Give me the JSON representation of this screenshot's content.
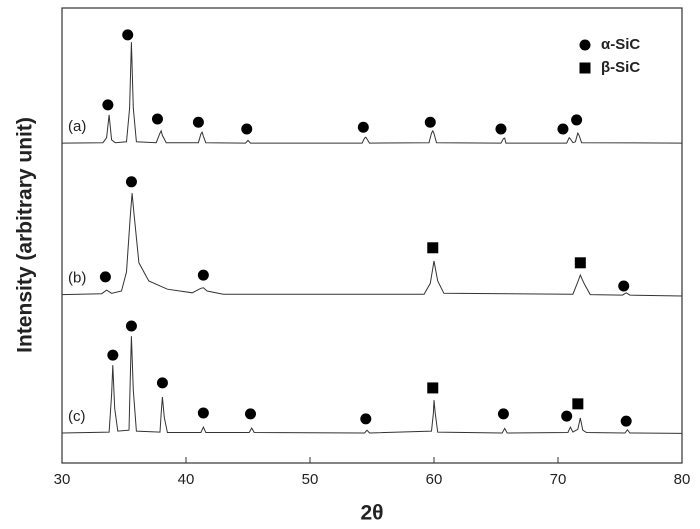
{
  "chart_data": {
    "type": "line",
    "xlabel": "2θ",
    "ylabel": "Intensity (arbitrary unit)",
    "xlim": [
      30,
      80
    ],
    "xticks": [
      30,
      40,
      50,
      60,
      70,
      80
    ],
    "ylim": [
      0,
      100
    ],
    "legend": "top-right",
    "series": [
      {
        "name": "(a)",
        "color": "#333333",
        "x": [
          30,
          33.3,
          33.6,
          33.8,
          34.0,
          34.3,
          35.2,
          35.45,
          35.6,
          35.75,
          36.0,
          37.6,
          37.9,
          38.0,
          38.1,
          38.4,
          41.0,
          41.2,
          41.3,
          41.4,
          41.6,
          44.8,
          45.0,
          45.2,
          54.2,
          54.4,
          54.5,
          54.6,
          54.8,
          59.6,
          59.8,
          59.9,
          60.0,
          60.2,
          65.4,
          65.6,
          65.7,
          65.8,
          70.7,
          70.9,
          71.0,
          71.2,
          71.4,
          71.6,
          71.7,
          71.9,
          80
        ],
        "values": [
          70.3,
          70.4,
          71.5,
          76.5,
          71,
          70.4,
          70.6,
          78,
          92.5,
          78,
          70.6,
          70.4,
          72.5,
          73,
          72,
          70.4,
          70.4,
          72.3,
          72.7,
          71.8,
          70.4,
          70.3,
          70.9,
          70.3,
          70.3,
          71.4,
          71.6,
          71.2,
          70.3,
          70.4,
          72.5,
          73,
          72.4,
          70.4,
          70.3,
          71.3,
          71.4,
          70.3,
          70.3,
          71.5,
          71.2,
          70.4,
          70.6,
          72.5,
          72,
          70.4,
          70.3
        ]
      },
      {
        "name": "(b)",
        "color": "#333333",
        "x": [
          30,
          33.2,
          33.6,
          34.0,
          34.8,
          35.2,
          35.5,
          35.65,
          35.8,
          36.2,
          37.0,
          38.5,
          40.5,
          41.2,
          41.4,
          41.7,
          43,
          59.2,
          59.7,
          60.0,
          60.3,
          60.8,
          71.2,
          71.6,
          71.8,
          72.1,
          72.6,
          75.2,
          75.5,
          75.8,
          80
        ],
        "values": [
          37,
          37.2,
          38,
          37.3,
          37.8,
          42,
          54,
          59.3,
          55,
          44,
          40,
          38.2,
          37.4,
          38.4,
          38.5,
          37.8,
          37.1,
          37.1,
          39.5,
          44.4,
          40,
          37.3,
          37.1,
          39.8,
          41.3,
          39.5,
          37,
          36.9,
          37.4,
          36.9,
          36.7
        ]
      },
      {
        "name": "(c)",
        "color": "#333333",
        "x": [
          30,
          33.8,
          34.0,
          34.1,
          34.25,
          34.5,
          35.4,
          35.5,
          35.6,
          35.75,
          36.0,
          37.9,
          38.0,
          38.1,
          38.25,
          38.5,
          41.2,
          41.4,
          41.6,
          45.1,
          45.3,
          45.5,
          54.4,
          54.6,
          54.8,
          59.8,
          59.95,
          60.0,
          60.1,
          60.3,
          65.5,
          65.7,
          65.9,
          70.8,
          71.0,
          71.2,
          71.6,
          71.8,
          72.0,
          72.3,
          75.4,
          75.6,
          75.8,
          80
        ],
        "values": [
          6.6,
          6.8,
          15,
          21.5,
          12,
          7,
          7.2,
          18,
          27.9,
          16,
          7,
          6.8,
          11,
          14.5,
          10,
          6.7,
          6.7,
          7.9,
          6.7,
          6.7,
          7.7,
          6.7,
          6.6,
          7.2,
          6.6,
          7,
          11,
          13.8,
          11,
          6.8,
          6.6,
          7.6,
          6.6,
          6.7,
          7.9,
          6.8,
          7.4,
          9.9,
          7.2,
          6.7,
          6.6,
          7.3,
          6.6,
          6.5
        ]
      }
    ],
    "phases": [
      {
        "name": "α-SiC",
        "marker": "circle",
        "color": "#000000",
        "points": [
          {
            "x": 33.7,
            "y": 78.7
          },
          {
            "x": 35.3,
            "y": 94.1
          },
          {
            "x": 37.7,
            "y": 75.6
          },
          {
            "x": 41.0,
            "y": 74.9
          },
          {
            "x": 44.9,
            "y": 73.4
          },
          {
            "x": 54.3,
            "y": 73.8
          },
          {
            "x": 59.7,
            "y": 74.9
          },
          {
            "x": 65.4,
            "y": 73.4
          },
          {
            "x": 70.4,
            "y": 73.4
          },
          {
            "x": 71.5,
            "y": 75.4
          },
          {
            "x": 33.5,
            "y": 40.9
          },
          {
            "x": 35.6,
            "y": 61.8
          },
          {
            "x": 41.4,
            "y": 41.3
          },
          {
            "x": 75.3,
            "y": 38.9
          },
          {
            "x": 34.1,
            "y": 23.7
          },
          {
            "x": 35.6,
            "y": 30.1
          },
          {
            "x": 38.1,
            "y": 17.6
          },
          {
            "x": 41.4,
            "y": 11.0
          },
          {
            "x": 45.2,
            "y": 10.8
          },
          {
            "x": 54.5,
            "y": 9.7
          },
          {
            "x": 65.6,
            "y": 10.8
          },
          {
            "x": 70.7,
            "y": 10.3
          },
          {
            "x": 75.5,
            "y": 9.2
          }
        ]
      },
      {
        "name": "β-SiC",
        "marker": "square",
        "color": "#000000",
        "points": [
          {
            "x": 59.9,
            "y": 47.3
          },
          {
            "x": 71.8,
            "y": 44.0
          },
          {
            "x": 59.9,
            "y": 16.5
          },
          {
            "x": 71.6,
            "y": 13.0
          }
        ]
      }
    ]
  }
}
